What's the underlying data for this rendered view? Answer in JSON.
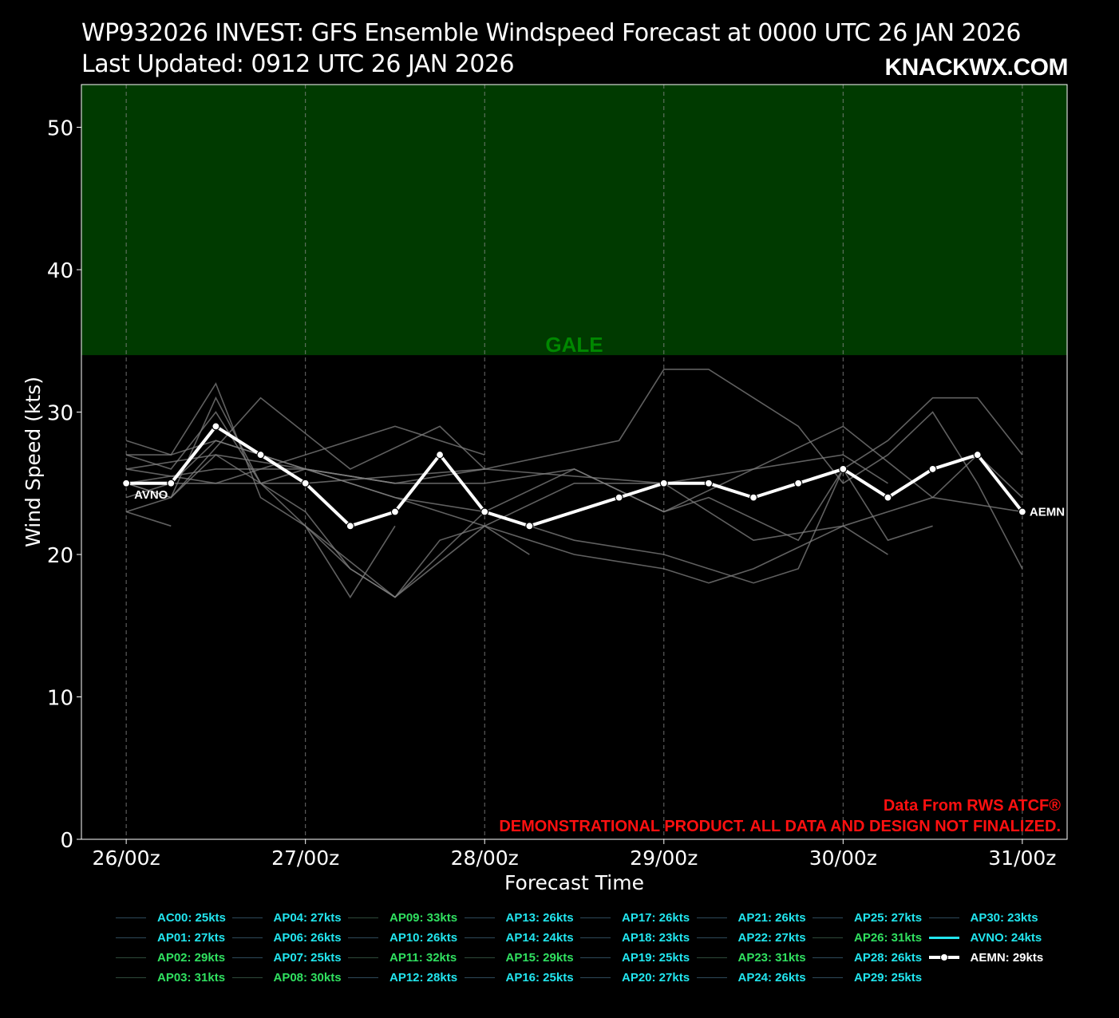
{
  "header": {
    "title": "WP932026 INVEST: GFS Ensemble Windspeed Forecast at 0000 UTC 26 JAN 2026",
    "updated": "Last Updated: 0912 UTC 26 JAN 2026",
    "brand": "KNACKWX.COM"
  },
  "notes": {
    "source": "Data From RWS ATCF®",
    "disclaimer": "DEMONSTRATIONAL PRODUCT. ALL DATA AND DESIGN NOT FINALIZED."
  },
  "colors": {
    "background": "#000000",
    "gale_band": "#003a00",
    "gale_label": "#008800",
    "member_line": "#808080",
    "mean_line": "#ffffff",
    "note_red": "#ff1010",
    "legend_cyan": "#22e5ee",
    "legend_green": "#30e060"
  },
  "chart_data": {
    "type": "line",
    "xlabel": "Forecast Time",
    "ylabel": "Wind Speed (kts)",
    "ylim": [
      0,
      53
    ],
    "yticks": [
      0,
      10,
      20,
      30,
      40,
      50
    ],
    "xlim": [
      -6,
      126
    ],
    "xticks": [
      {
        "hour": 0,
        "label": "26/00z"
      },
      {
        "hour": 24,
        "label": "27/00z"
      },
      {
        "hour": 48,
        "label": "28/00z"
      },
      {
        "hour": 72,
        "label": "29/00z"
      },
      {
        "hour": 96,
        "label": "30/00z"
      },
      {
        "hour": 120,
        "label": "31/00z"
      }
    ],
    "grid": "vertical dashed",
    "threshold_band": {
      "label": "GALE",
      "from": 34,
      "to": 53
    },
    "series_labels": {
      "start": "AVNO",
      "end": "AEMN"
    },
    "mean": {
      "name": "AEMN",
      "x": [
        0,
        6,
        12,
        18,
        24,
        30,
        36,
        42,
        48,
        54,
        66,
        72,
        78,
        84,
        90,
        96,
        102,
        108,
        114,
        120
      ],
      "y": [
        25,
        25,
        29,
        27,
        25,
        22,
        23,
        27,
        23,
        22,
        24,
        25,
        25,
        24,
        25,
        26,
        24,
        26,
        27,
        23
      ]
    },
    "members": [
      {
        "x": [
          0,
          6,
          12,
          18,
          24,
          36,
          48,
          60,
          72,
          84,
          96,
          108,
          120
        ],
        "y": [
          28,
          27,
          32,
          24,
          22,
          17,
          22,
          25,
          25,
          21,
          22,
          24,
          23
        ]
      },
      {
        "x": [
          0,
          6,
          12,
          18,
          24,
          36,
          42,
          48,
          54
        ],
        "y": [
          27,
          26,
          30,
          25,
          26,
          24,
          23,
          22,
          20
        ]
      },
      {
        "x": [
          0,
          6,
          12,
          18,
          24,
          30,
          36
        ],
        "y": [
          23,
          24,
          31,
          25,
          22,
          17,
          22
        ]
      },
      {
        "x": [
          0,
          6,
          12,
          24,
          36,
          48,
          60,
          72,
          78,
          90,
          96,
          102,
          108,
          114,
          120
        ],
        "y": [
          24,
          25,
          28,
          26,
          24,
          23,
          26,
          23,
          24,
          21,
          26,
          28,
          31,
          31,
          27
        ]
      },
      {
        "x": [
          0,
          6,
          18,
          30,
          42,
          48,
          66,
          72,
          78,
          84,
          90,
          96,
          102,
          108,
          114,
          120
        ],
        "y": [
          25,
          24,
          31,
          26,
          29,
          26,
          28,
          33,
          33,
          31,
          29,
          25,
          27,
          30,
          25,
          19
        ]
      },
      {
        "x": [
          0,
          12,
          24,
          36,
          48,
          60,
          72,
          84,
          96,
          108,
          114,
          120
        ],
        "y": [
          26,
          27,
          26,
          25,
          25,
          26,
          23,
          26,
          29,
          24,
          27,
          24
        ]
      },
      {
        "x": [
          0,
          24,
          48,
          72,
          96,
          102
        ],
        "y": [
          25,
          25,
          26,
          25,
          27,
          25
        ]
      },
      {
        "x": [
          0,
          6
        ],
        "y": [
          23,
          22
        ]
      },
      {
        "x": [
          0,
          6,
          12,
          24,
          36
        ],
        "y": [
          27,
          27,
          28,
          26,
          25
        ]
      },
      {
        "x": [
          0,
          12,
          24,
          36,
          48
        ],
        "y": [
          25,
          26,
          26,
          25,
          26
        ]
      },
      {
        "x": [
          0,
          6,
          12,
          24,
          30,
          36,
          48,
          60,
          72,
          84,
          90,
          96,
          102,
          108
        ],
        "y": [
          25,
          24,
          27,
          23,
          19,
          17,
          23,
          21,
          20,
          18,
          19,
          26,
          21,
          22
        ]
      },
      {
        "x": [
          0,
          12,
          24,
          36,
          48
        ],
        "y": [
          26,
          25,
          27,
          29,
          27
        ]
      },
      {
        "x": [
          24,
          30,
          36,
          42,
          48,
          60,
          72,
          78,
          84,
          96,
          102
        ],
        "y": [
          22,
          19,
          17,
          21,
          22,
          20,
          19,
          18,
          19,
          22,
          20
        ]
      }
    ],
    "legend": [
      {
        "label": "AC00: 25kts",
        "color": "#22e5ee",
        "line": "#2e4a5a"
      },
      {
        "label": "AP01: 27kts",
        "color": "#22e5ee",
        "line": "#2e4a5a"
      },
      {
        "label": "AP02: 29kts",
        "color": "#30e060",
        "line": "#2e4a3a"
      },
      {
        "label": "AP03: 31kts",
        "color": "#30e060",
        "line": "#2e4a3a"
      },
      {
        "label": "AP04: 27kts",
        "color": "#22e5ee",
        "line": "#2e4a5a"
      },
      {
        "label": "AP06: 26kts",
        "color": "#22e5ee",
        "line": "#2e4a5a"
      },
      {
        "label": "AP07: 25kts",
        "color": "#22e5ee",
        "line": "#2e4a5a"
      },
      {
        "label": "AP08: 30kts",
        "color": "#30e060",
        "line": "#2e4a3a"
      },
      {
        "label": "AP09: 33kts",
        "color": "#30e060",
        "line": "#2e4a3a"
      },
      {
        "label": "AP10: 26kts",
        "color": "#22e5ee",
        "line": "#2e4a5a"
      },
      {
        "label": "AP11: 32kts",
        "color": "#30e060",
        "line": "#2e4a3a"
      },
      {
        "label": "AP12: 28kts",
        "color": "#22e5ee",
        "line": "#2e4a5a"
      },
      {
        "label": "AP13: 26kts",
        "color": "#22e5ee",
        "line": "#2e4a5a"
      },
      {
        "label": "AP14: 24kts",
        "color": "#22e5ee",
        "line": "#2e4a5a"
      },
      {
        "label": "AP15: 29kts",
        "color": "#30e060",
        "line": "#2e4a3a"
      },
      {
        "label": "AP16: 25kts",
        "color": "#22e5ee",
        "line": "#2e4a5a"
      },
      {
        "label": "AP17: 26kts",
        "color": "#22e5ee",
        "line": "#2e4a5a"
      },
      {
        "label": "AP18: 23kts",
        "color": "#22e5ee",
        "line": "#2e4a5a"
      },
      {
        "label": "AP19: 25kts",
        "color": "#22e5ee",
        "line": "#2e4a5a"
      },
      {
        "label": "AP20: 27kts",
        "color": "#22e5ee",
        "line": "#2e4a5a"
      },
      {
        "label": "AP21: 26kts",
        "color": "#22e5ee",
        "line": "#2e4a5a"
      },
      {
        "label": "AP22: 27kts",
        "color": "#22e5ee",
        "line": "#2e4a5a"
      },
      {
        "label": "AP23: 31kts",
        "color": "#30e060",
        "line": "#2e4a3a"
      },
      {
        "label": "AP24: 26kts",
        "color": "#22e5ee",
        "line": "#2e4a5a"
      },
      {
        "label": "AP25: 27kts",
        "color": "#22e5ee",
        "line": "#2e4a5a"
      },
      {
        "label": "AP26: 31kts",
        "color": "#30e060",
        "line": "#2e4a3a"
      },
      {
        "label": "AP28: 26kts",
        "color": "#22e5ee",
        "line": "#2e4a5a"
      },
      {
        "label": "AP29: 25kts",
        "color": "#22e5ee",
        "line": "#2e4a5a"
      },
      {
        "label": "AP30: 23kts",
        "color": "#22e5ee",
        "line": "#2e4a5a"
      },
      {
        "label": "AVNO: 24kts",
        "color": "#22e5ee",
        "line": "#22e5ee",
        "style": "bold"
      },
      {
        "label": "AEMN: 29kts",
        "color": "#ffffff",
        "line": "#ffffff",
        "style": "mean"
      }
    ]
  }
}
